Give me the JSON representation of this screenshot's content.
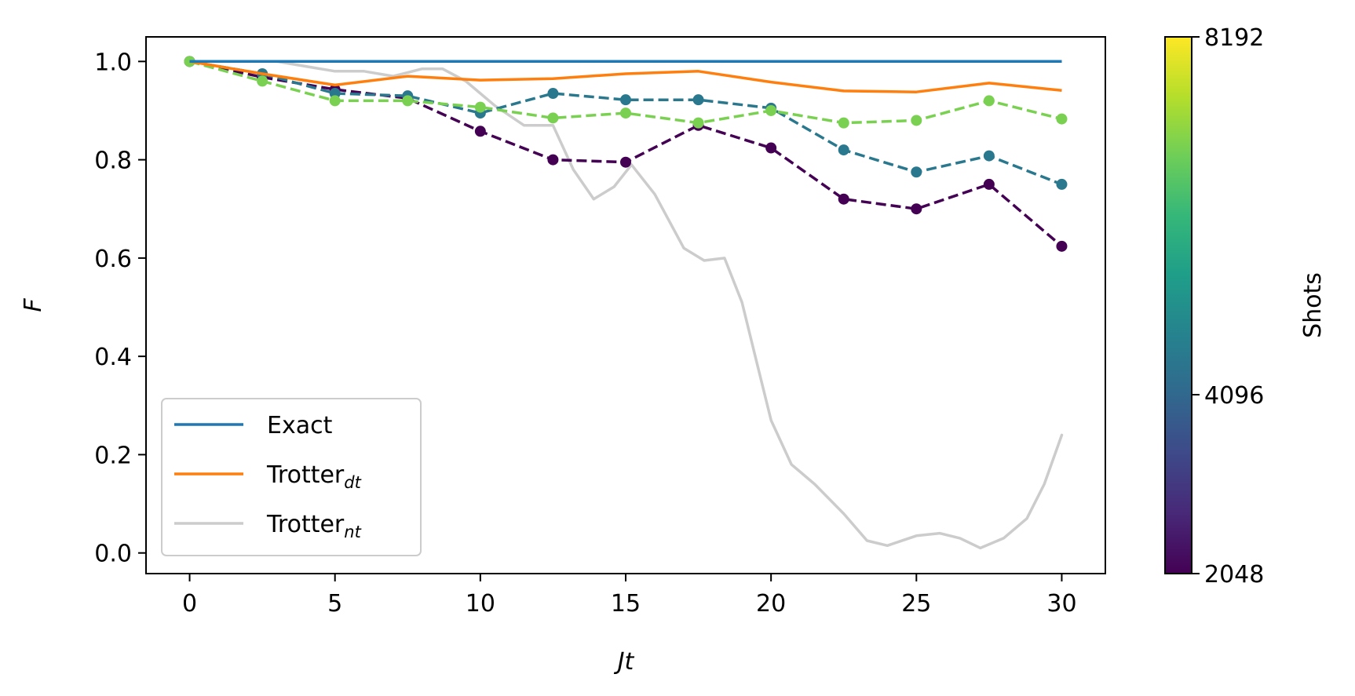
{
  "chart_data": {
    "type": "line",
    "xlabel": "Jt",
    "ylabel": "F",
    "xlim": [
      -1.5,
      31.5
    ],
    "ylim": [
      -0.042,
      1.05
    ],
    "xticks": [
      "0",
      "5",
      "10",
      "15",
      "20",
      "25",
      "30"
    ],
    "yticks": [
      "0.0",
      "0.2",
      "0.4",
      "0.6",
      "0.8",
      "1.0"
    ],
    "grid": false,
    "legend_position": "lower left",
    "legend": [
      {
        "base": "Exact",
        "sub": "",
        "color": "#1f77b4"
      },
      {
        "base": "Trotter",
        "sub": "dt",
        "color": "#ff7f0e"
      },
      {
        "base": "Trotter",
        "sub": "nt",
        "color": "#cccccc"
      }
    ],
    "lines": {
      "exact": {
        "x": [
          0,
          30
        ],
        "y": [
          1.0,
          1.0
        ],
        "color": "#1f77b4"
      },
      "trotter_dt": {
        "x": [
          0,
          2.5,
          5,
          7.5,
          10,
          12.5,
          15,
          17.5,
          20,
          22.5,
          25,
          27.5,
          30
        ],
        "y": [
          1.0,
          0.975,
          0.952,
          0.97,
          0.962,
          0.965,
          0.975,
          0.98,
          0.958,
          0.94,
          0.938,
          0.956,
          0.941
        ],
        "color": "#ff7f0e"
      },
      "trotter_nt": {
        "x": [
          0,
          1,
          2,
          3,
          4,
          5,
          6,
          7,
          8,
          8.7,
          9.5,
          10.5,
          11.5,
          12.5,
          13.2,
          13.9,
          14.6,
          15.2,
          16,
          17,
          17.7,
          18.4,
          19,
          19.5,
          20,
          20.7,
          21.5,
          22.5,
          23.3,
          24,
          25,
          25.8,
          26.5,
          27.2,
          28,
          28.8,
          29.4,
          30
        ],
        "y": [
          1.0,
          1.0,
          1.0,
          1.0,
          0.99,
          0.98,
          0.98,
          0.97,
          0.985,
          0.985,
          0.96,
          0.91,
          0.87,
          0.87,
          0.78,
          0.72,
          0.745,
          0.79,
          0.73,
          0.62,
          0.595,
          0.6,
          0.51,
          0.39,
          0.27,
          0.18,
          0.14,
          0.08,
          0.025,
          0.015,
          0.035,
          0.04,
          0.03,
          0.01,
          0.03,
          0.07,
          0.14,
          0.24
        ],
        "color": "#cccccc"
      }
    },
    "series": [
      {
        "shots": 2048,
        "color": "#440154",
        "x": [
          0,
          2.5,
          5,
          7.5,
          10,
          12.5,
          15,
          17.5,
          20,
          22.5,
          25,
          27.5,
          30
        ],
        "y": [
          1.0,
          0.968,
          0.943,
          0.925,
          0.858,
          0.8,
          0.795,
          0.87,
          0.824,
          0.72,
          0.7,
          0.75,
          0.624
        ]
      },
      {
        "shots": 4096,
        "color": "#2a788e",
        "x": [
          0,
          2.5,
          5,
          7.5,
          10,
          12.5,
          15,
          17.5,
          20,
          22.5,
          25,
          27.5,
          30
        ],
        "y": [
          1.0,
          0.975,
          0.935,
          0.93,
          0.895,
          0.935,
          0.922,
          0.922,
          0.905,
          0.82,
          0.775,
          0.808,
          0.75
        ]
      },
      {
        "shots": 8192,
        "color": "#7ad151",
        "x": [
          0,
          2.5,
          5,
          7.5,
          10,
          12.5,
          15,
          17.5,
          20,
          22.5,
          25,
          27.5,
          30
        ],
        "y": [
          1.0,
          0.96,
          0.92,
          0.92,
          0.907,
          0.885,
          0.895,
          0.875,
          0.9,
          0.875,
          0.88,
          0.92,
          0.883
        ]
      }
    ],
    "colorbar": {
      "label": "Shots",
      "ticks": [
        "2048",
        "4096",
        "8192"
      ],
      "tick_values": [
        2048,
        4096,
        8192
      ],
      "range": [
        2048,
        8192
      ],
      "colormap": [
        "#440154",
        "#482878",
        "#3e4989",
        "#31688e",
        "#26828e",
        "#1f9e89",
        "#35b779",
        "#6ece58",
        "#b5de2b",
        "#fde725"
      ]
    }
  }
}
